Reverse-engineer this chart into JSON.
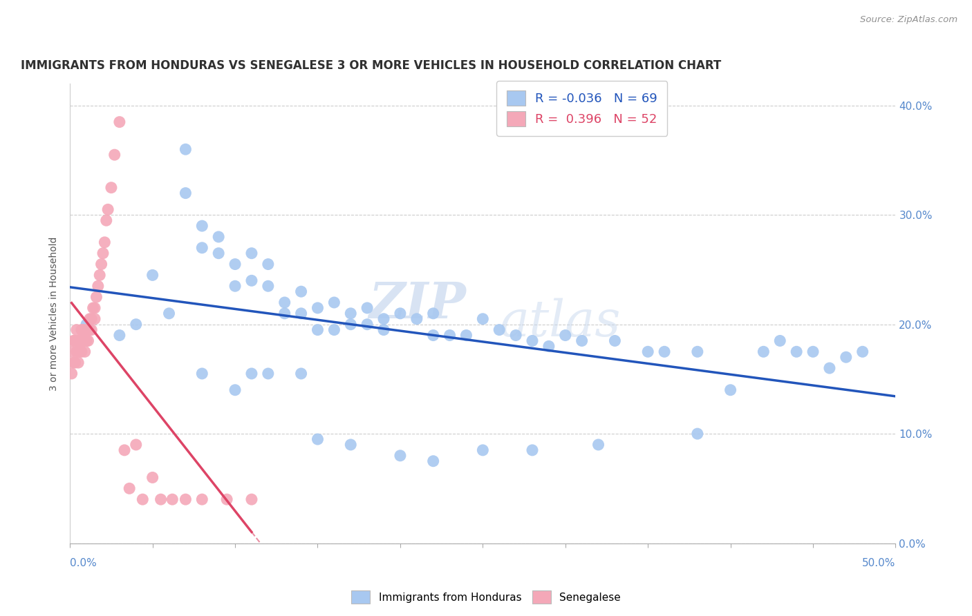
{
  "title": "IMMIGRANTS FROM HONDURAS VS SENEGALESE 3 OR MORE VEHICLES IN HOUSEHOLD CORRELATION CHART",
  "source": "Source: ZipAtlas.com",
  "ylabel": "3 or more Vehicles in Household",
  "legend_label1": "Immigrants from Honduras",
  "legend_label2": "Senegalese",
  "R1": "-0.036",
  "N1": "69",
  "R2": "0.396",
  "N2": "52",
  "blue_color": "#a8c8f0",
  "pink_color": "#f4a8b8",
  "blue_line_color": "#2255bb",
  "pink_line_color": "#dd4466",
  "watermark_zip": "ZIP",
  "watermark_atlas": "atlas",
  "background_color": "#ffffff",
  "title_color": "#303030",
  "source_color": "#909090",
  "xlim": [
    0.0,
    0.5
  ],
  "ylim": [
    0.0,
    0.42
  ],
  "x_tick_count": 6,
  "y_ticks": [
    0.0,
    0.1,
    0.2,
    0.3,
    0.4
  ],
  "blue_x": [
    0.01,
    0.03,
    0.04,
    0.05,
    0.06,
    0.07,
    0.07,
    0.08,
    0.08,
    0.09,
    0.09,
    0.1,
    0.1,
    0.11,
    0.11,
    0.12,
    0.12,
    0.13,
    0.13,
    0.14,
    0.14,
    0.15,
    0.15,
    0.16,
    0.16,
    0.17,
    0.17,
    0.18,
    0.18,
    0.19,
    0.19,
    0.2,
    0.21,
    0.22,
    0.22,
    0.23,
    0.24,
    0.25,
    0.26,
    0.27,
    0.28,
    0.29,
    0.3,
    0.31,
    0.33,
    0.35,
    0.36,
    0.38,
    0.4,
    0.42,
    0.43,
    0.44,
    0.45,
    0.47,
    0.48,
    0.08,
    0.1,
    0.11,
    0.12,
    0.14,
    0.15,
    0.17,
    0.2,
    0.22,
    0.25,
    0.28,
    0.32,
    0.38,
    0.46
  ],
  "blue_y": [
    0.2,
    0.19,
    0.2,
    0.245,
    0.21,
    0.36,
    0.32,
    0.27,
    0.29,
    0.265,
    0.28,
    0.255,
    0.235,
    0.265,
    0.24,
    0.255,
    0.235,
    0.21,
    0.22,
    0.23,
    0.21,
    0.195,
    0.215,
    0.22,
    0.195,
    0.21,
    0.2,
    0.215,
    0.2,
    0.205,
    0.195,
    0.21,
    0.205,
    0.19,
    0.21,
    0.19,
    0.19,
    0.205,
    0.195,
    0.19,
    0.185,
    0.18,
    0.19,
    0.185,
    0.185,
    0.175,
    0.175,
    0.175,
    0.14,
    0.175,
    0.185,
    0.175,
    0.175,
    0.17,
    0.175,
    0.155,
    0.14,
    0.155,
    0.155,
    0.155,
    0.095,
    0.09,
    0.08,
    0.075,
    0.085,
    0.085,
    0.09,
    0.1,
    0.16
  ],
  "pink_x": [
    0.001,
    0.001,
    0.002,
    0.002,
    0.003,
    0.003,
    0.004,
    0.004,
    0.005,
    0.005,
    0.005,
    0.006,
    0.006,
    0.007,
    0.007,
    0.008,
    0.008,
    0.009,
    0.009,
    0.01,
    0.01,
    0.011,
    0.011,
    0.012,
    0.012,
    0.013,
    0.013,
    0.014,
    0.015,
    0.015,
    0.016,
    0.017,
    0.018,
    0.019,
    0.02,
    0.021,
    0.022,
    0.023,
    0.025,
    0.027,
    0.03,
    0.033,
    0.036,
    0.04,
    0.044,
    0.05,
    0.055,
    0.062,
    0.07,
    0.08,
    0.095,
    0.11
  ],
  "pink_y": [
    0.175,
    0.155,
    0.165,
    0.185,
    0.165,
    0.185,
    0.175,
    0.195,
    0.175,
    0.185,
    0.165,
    0.185,
    0.175,
    0.195,
    0.175,
    0.195,
    0.185,
    0.175,
    0.185,
    0.195,
    0.185,
    0.195,
    0.185,
    0.195,
    0.205,
    0.205,
    0.195,
    0.215,
    0.215,
    0.205,
    0.225,
    0.235,
    0.245,
    0.255,
    0.265,
    0.275,
    0.295,
    0.305,
    0.325,
    0.355,
    0.385,
    0.085,
    0.05,
    0.09,
    0.04,
    0.06,
    0.04,
    0.04,
    0.04,
    0.04,
    0.04,
    0.04
  ]
}
